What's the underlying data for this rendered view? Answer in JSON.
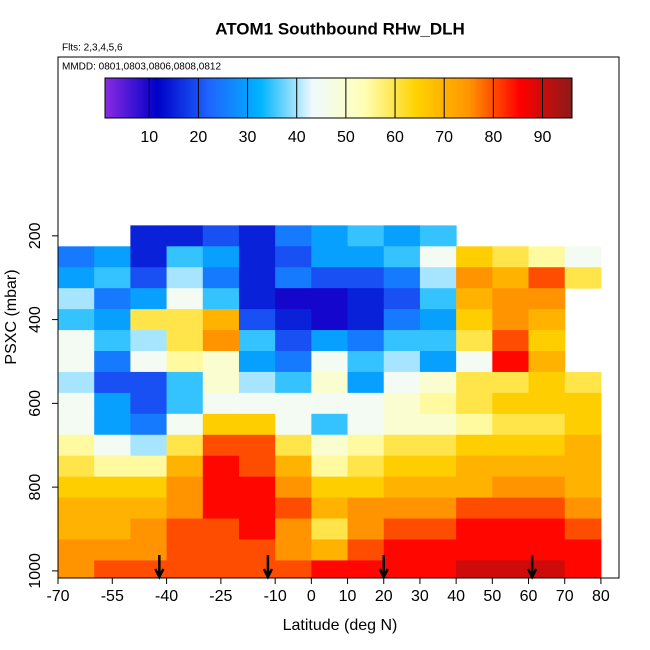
{
  "chart_data": {
    "type": "heatmap",
    "title": "ATOM1 Southbound RHw_DLH",
    "subtitle": "Flts: 2,3,4,5,6",
    "annotation": "MMDD: 0801,0803,0806,0808,0812",
    "x_label": "Latitude (deg N)",
    "y_label": "PSXC (mbar)",
    "xlim": [
      -70,
      85
    ],
    "ylim": [
      1017,
      -227
    ],
    "xticks": [
      -70,
      -55,
      -40,
      -25,
      -10,
      0,
      10,
      20,
      30,
      40,
      50,
      60,
      70,
      80
    ],
    "yticks": [
      200,
      400,
      600,
      800,
      1000
    ],
    "x": [
      -65,
      -55,
      -45,
      -35,
      -25,
      -15,
      -5,
      5,
      15,
      25,
      35,
      45,
      55,
      65,
      75
    ],
    "y": [
      200,
      250,
      300,
      350,
      400,
      450,
      500,
      550,
      600,
      650,
      700,
      750,
      800,
      850,
      900,
      950,
      1000
    ],
    "z": [
      [
        null,
        null,
        15,
        15,
        20,
        15,
        25,
        30,
        35,
        30,
        35,
        null,
        null,
        null,
        null
      ],
      [
        25,
        30,
        15,
        35,
        30,
        15,
        20,
        30,
        30,
        35,
        45,
        65,
        60,
        55,
        45
      ],
      [
        30,
        35,
        20,
        40,
        25,
        15,
        25,
        20,
        20,
        25,
        40,
        75,
        70,
        80,
        60
      ],
      [
        40,
        25,
        30,
        45,
        35,
        15,
        10,
        10,
        15,
        20,
        35,
        70,
        75,
        75,
        null
      ],
      [
        35,
        30,
        60,
        60,
        70,
        20,
        15,
        10,
        15,
        25,
        30,
        65,
        75,
        70,
        null
      ],
      [
        45,
        35,
        40,
        60,
        75,
        35,
        20,
        30,
        25,
        35,
        35,
        60,
        80,
        65,
        null
      ],
      [
        45,
        25,
        45,
        55,
        50,
        30,
        25,
        45,
        35,
        40,
        30,
        45,
        85,
        70,
        null
      ],
      [
        40,
        20,
        20,
        35,
        50,
        40,
        35,
        50,
        30,
        45,
        50,
        60,
        60,
        65,
        60
      ],
      [
        45,
        30,
        20,
        35,
        45,
        45,
        45,
        45,
        45,
        50,
        55,
        60,
        65,
        65,
        65
      ],
      [
        45,
        30,
        25,
        45,
        65,
        65,
        45,
        35,
        45,
        50,
        50,
        55,
        60,
        60,
        65
      ],
      [
        55,
        45,
        40,
        60,
        80,
        80,
        60,
        50,
        55,
        60,
        60,
        65,
        65,
        65,
        70
      ],
      [
        60,
        55,
        55,
        70,
        85,
        80,
        70,
        55,
        60,
        65,
        65,
        70,
        70,
        70,
        70
      ],
      [
        65,
        65,
        65,
        75,
        85,
        85,
        75,
        65,
        65,
        70,
        70,
        70,
        75,
        75,
        70
      ],
      [
        70,
        70,
        70,
        75,
        85,
        85,
        80,
        70,
        75,
        75,
        75,
        80,
        80,
        80,
        75
      ],
      [
        70,
        70,
        75,
        80,
        80,
        85,
        75,
        60,
        75,
        80,
        80,
        85,
        85,
        85,
        80
      ],
      [
        75,
        75,
        75,
        80,
        80,
        80,
        75,
        70,
        80,
        85,
        85,
        85,
        85,
        85,
        85
      ],
      [
        75,
        80,
        80,
        80,
        80,
        80,
        80,
        85,
        85,
        85,
        85,
        90,
        90,
        90,
        85
      ]
    ],
    "arrows_x": [
      -42,
      -12,
      20,
      61
    ],
    "colorbar": {
      "range": [
        1,
        96
      ],
      "ticks": [
        10,
        20,
        30,
        40,
        50,
        60,
        70,
        80,
        90
      ],
      "colors": [
        "#8a2be2",
        "#0000c8",
        "#1e64ff",
        "#00b4ff",
        "#f0faff",
        "#ffffb4",
        "#ffd200",
        "#ff9600",
        "#ff0000",
        "#8b1a1a"
      ]
    }
  }
}
